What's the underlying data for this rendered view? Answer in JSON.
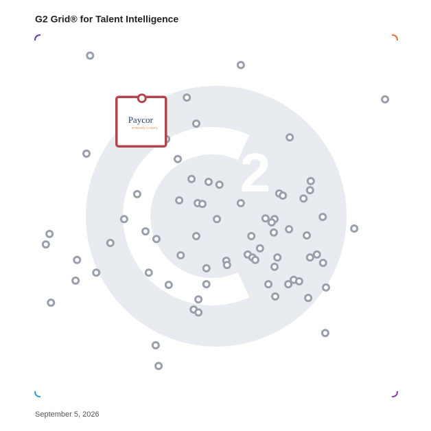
{
  "chart_data": {
    "type": "scatter",
    "title": "G2 Grid® for Talent Intelligence",
    "footnote": "September 5, 2026",
    "xlim": [
      0,
      100
    ],
    "ylim": [
      0,
      100
    ],
    "color": "#9aa0ab",
    "x": [
      15.2,
      56.8,
      96.6,
      41.9,
      44.5,
      36.2,
      70.3,
      14.2,
      39.4,
      43.2,
      47.9,
      50.9,
      76.1,
      75.9,
      67.4,
      68.4,
      74.1,
      28.2,
      39.8,
      44.9,
      46.2,
      56.8,
      24.6,
      50.2,
      63.6,
      66.1,
      65.3,
      79.4,
      88.1,
      70.1,
      4.0,
      3.0,
      30.5,
      33.5,
      20.8,
      44.5,
      59.7,
      65.9,
      75.0,
      62.1,
      40.2,
      58.7,
      60.0,
      60.8,
      66.9,
      52.8,
      53.0,
      77.8,
      75.9,
      79.5,
      11.6,
      11.2,
      16.9,
      31.4,
      47.3,
      66.1,
      36.9,
      47.3,
      64.4,
      69.9,
      71.4,
      72.9,
      80.3,
      45.1,
      66.3,
      75.4,
      4.4,
      43.8,
      45.1,
      80.1,
      33.3,
      34.1
    ],
    "y": [
      94.3,
      91.7,
      82.2,
      82.7,
      75.5,
      71.2,
      71.7,
      67.2,
      65.7,
      60.2,
      59.4,
      58.6,
      59.6,
      57.1,
      56.2,
      55.6,
      54.8,
      56.0,
      54.3,
      53.5,
      53.3,
      53.5,
      49.1,
      49.1,
      49.3,
      49.1,
      48.2,
      49.7,
      46.5,
      46.3,
      45.0,
      42.1,
      45.7,
      43.6,
      42.5,
      44.4,
      44.4,
      45.4,
      44.6,
      41.0,
      39.1,
      39.3,
      38.5,
      37.8,
      38.5,
      37.6,
      36.4,
      39.3,
      38.5,
      37.0,
      37.8,
      32.1,
      34.3,
      34.3,
      35.5,
      35.9,
      30.9,
      31.1,
      31.1,
      31.1,
      32.3,
      31.9,
      30.2,
      26.9,
      27.7,
      27.3,
      26.0,
      24.1,
      23.3,
      17.6,
      14.2,
      8.5
    ],
    "highlight": {
      "label": "Paycor",
      "sublabel": "A Paylocity Company",
      "x": 29.5,
      "y": 82.5,
      "color": "#b5454b"
    }
  }
}
